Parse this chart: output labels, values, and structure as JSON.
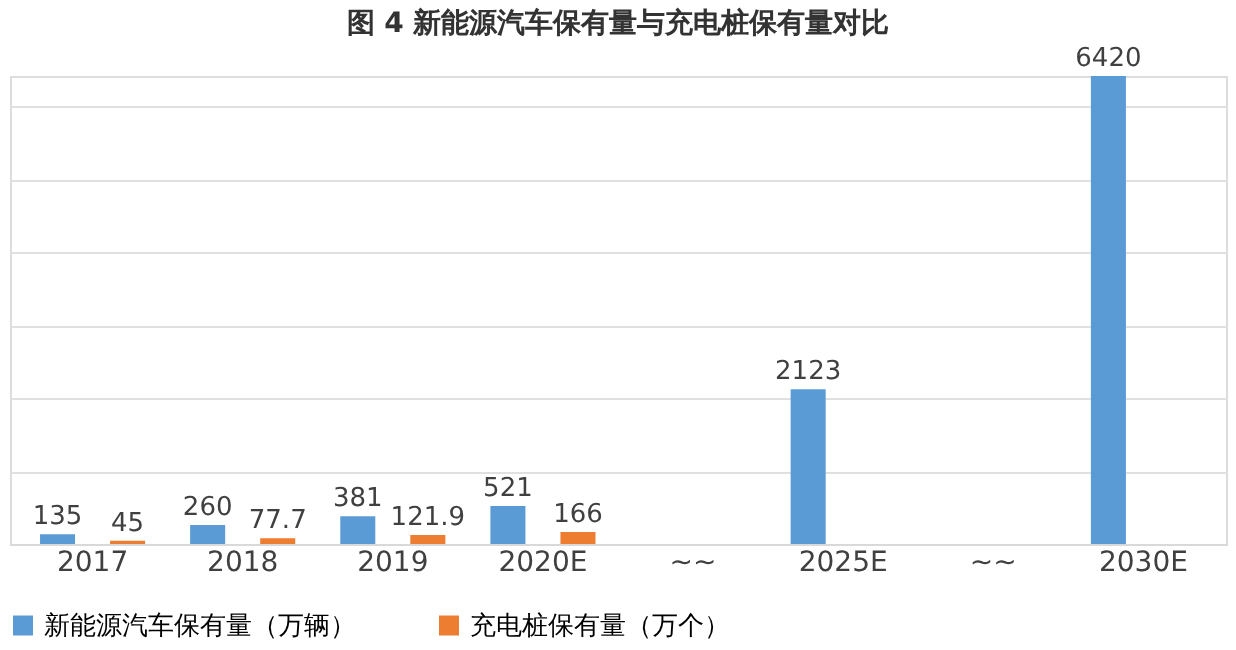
{
  "chart_data": {
    "type": "bar",
    "title": "图 4  新能源汽车保有量与充电桩保有量对比",
    "categories": [
      "2017",
      "2018",
      "2019",
      "2020E",
      "~~",
      "2025E",
      "~~",
      "2030E"
    ],
    "series": [
      {
        "name": "新能源汽车保有量（万辆）",
        "color": "#5b9bd5",
        "values": [
          135,
          260,
          381,
          521,
          null,
          2123,
          null,
          6420
        ]
      },
      {
        "name": "充电桩保有量（万个）",
        "color": "#ed7d31",
        "values": [
          45,
          77.7,
          121.9,
          166,
          null,
          null,
          null,
          null
        ]
      }
    ],
    "data_labels": true,
    "grid": "y",
    "legend": "bottom"
  }
}
